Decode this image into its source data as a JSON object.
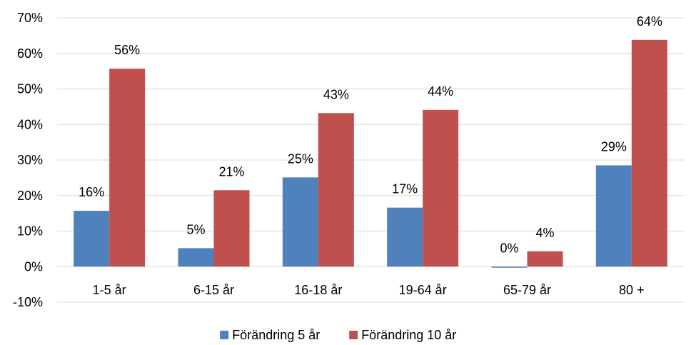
{
  "chart_data": {
    "type": "bar",
    "title": "",
    "xlabel": "",
    "ylabel": "",
    "categories": [
      "1-5 år",
      "6-15 år",
      "16-18 år",
      "19-64 år",
      "65-79 år",
      "80 +"
    ],
    "series": [
      {
        "name": "Förändring 5 år",
        "values": [
          0.157,
          0.052,
          0.251,
          0.166,
          -0.003,
          0.285
        ],
        "labels": [
          "16%",
          "5%",
          "25%",
          "17%",
          "0%",
          "29%"
        ],
        "color": "#4F81BD"
      },
      {
        "name": "Förändring 10 år",
        "values": [
          0.557,
          0.215,
          0.432,
          0.441,
          0.043,
          0.638
        ],
        "labels": [
          "56%",
          "21%",
          "43%",
          "44%",
          "4%",
          "64%"
        ],
        "color": "#C0504D"
      }
    ],
    "ylim": [
      -0.1,
      0.7
    ],
    "yticks": [
      -0.1,
      0,
      0.1,
      0.2,
      0.3,
      0.4,
      0.5,
      0.6,
      0.7
    ],
    "ytick_labels": [
      "-10%",
      "0%",
      "10%",
      "20%",
      "30%",
      "40%",
      "50%",
      "60%",
      "70%"
    ],
    "grid": true,
    "legend_position": "bottom"
  }
}
